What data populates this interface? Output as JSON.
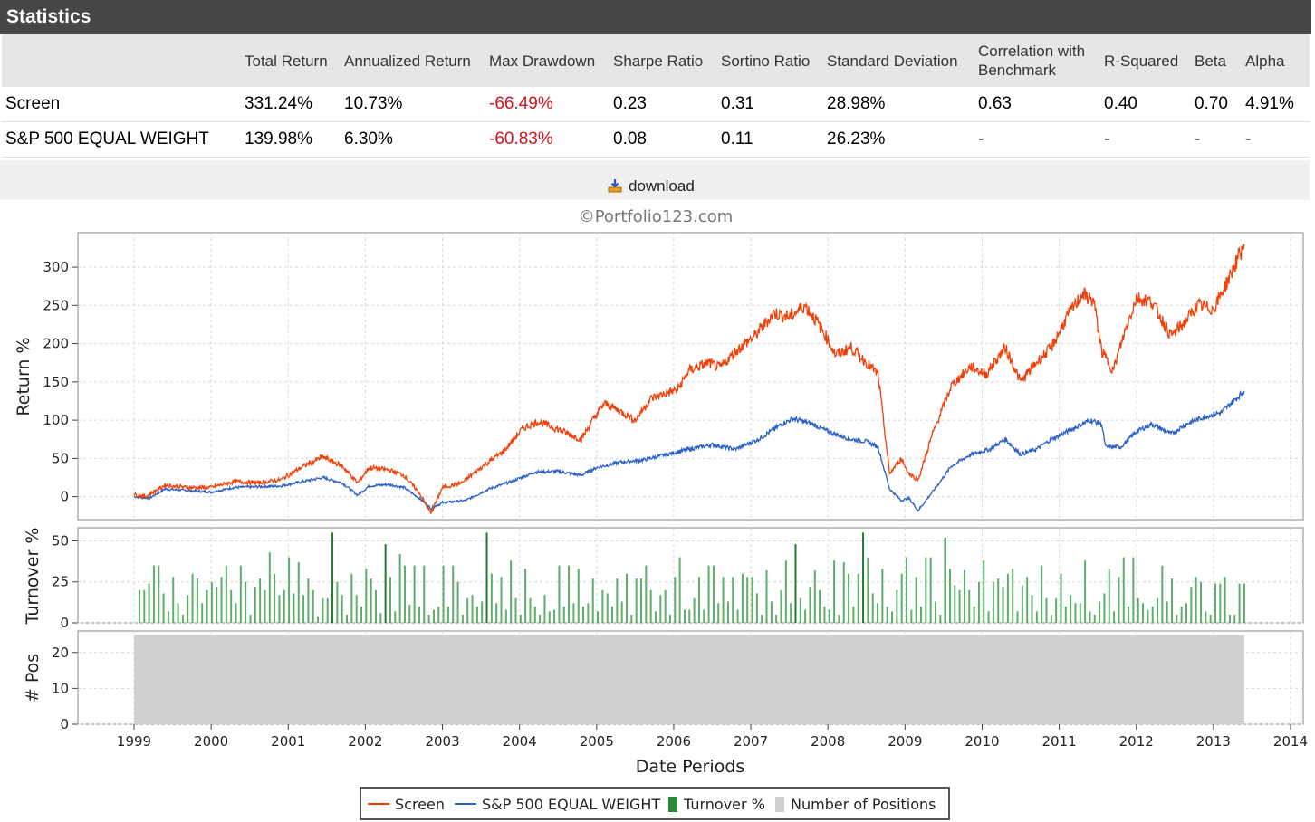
{
  "statistics": {
    "title": "Statistics",
    "columns": [
      "",
      "Total Return",
      "Annualized Return",
      "Max Drawdown",
      "Sharpe Ratio",
      "Sortino Ratio",
      "Standard Deviation",
      "Correlation with Benchmark",
      "R-Squared",
      "Beta",
      "Alpha"
    ],
    "rows": [
      {
        "name": "Screen",
        "total_return": "331.24%",
        "annualized_return": "10.73%",
        "max_drawdown": "-66.49%",
        "sharpe": "0.23",
        "sortino": "0.31",
        "std_dev": "28.98%",
        "correlation": "0.63",
        "r_squared": "0.40",
        "beta": "0.70",
        "alpha": "4.91%"
      },
      {
        "name": "S&P 500 EQUAL WEIGHT",
        "total_return": "139.98%",
        "annualized_return": "6.30%",
        "max_drawdown": "-60.83%",
        "sharpe": "0.08",
        "sortino": "0.11",
        "std_dev": "26.23%",
        "correlation": "-",
        "r_squared": "-",
        "beta": "-",
        "alpha": "-"
      }
    ],
    "negative_color": "#d2141e"
  },
  "download": {
    "label": "download",
    "icon": "download-icon"
  },
  "chart_data": {
    "type": "line",
    "copyright": "©Portfolio123.com",
    "xlabel": "Date Periods",
    "x_ticks": [
      "1999",
      "2000",
      "2001",
      "2002",
      "2003",
      "2004",
      "2005",
      "2006",
      "2007",
      "2008",
      "2009",
      "2010",
      "2011",
      "2012",
      "2013",
      "2014"
    ],
    "xlim": [
      1999.0,
      2014.0
    ],
    "grid": true,
    "panels": [
      {
        "ylabel": "Return %",
        "ylim": [
          -30,
          345
        ],
        "y_ticks": [
          0,
          50,
          100,
          150,
          200,
          250,
          300
        ],
        "series": [
          {
            "name": "Screen",
            "color": "#f0400a",
            "points": [
              [
                1999.0,
                3
              ],
              [
                1999.15,
                0
              ],
              [
                1999.4,
                15
              ],
              [
                1999.7,
                12
              ],
              [
                2000.0,
                12
              ],
              [
                2000.3,
                20
              ],
              [
                2000.6,
                18
              ],
              [
                2000.9,
                22
              ],
              [
                2001.2,
                40
              ],
              [
                2001.45,
                52
              ],
              [
                2001.7,
                40
              ],
              [
                2001.9,
                18
              ],
              [
                2002.05,
                38
              ],
              [
                2002.3,
                35
              ],
              [
                2002.5,
                28
              ],
              [
                2002.7,
                5
              ],
              [
                2002.85,
                -22
              ],
              [
                2003.0,
                12
              ],
              [
                2003.25,
                18
              ],
              [
                2003.5,
                38
              ],
              [
                2003.8,
                60
              ],
              [
                2004.05,
                90
              ],
              [
                2004.25,
                98
              ],
              [
                2004.5,
                88
              ],
              [
                2004.8,
                75
              ],
              [
                2004.95,
                100
              ],
              [
                2005.1,
                122
              ],
              [
                2005.3,
                112
              ],
              [
                2005.5,
                100
              ],
              [
                2005.7,
                128
              ],
              [
                2005.9,
                135
              ],
              [
                2006.05,
                140
              ],
              [
                2006.2,
                165
              ],
              [
                2006.45,
                175
              ],
              [
                2006.6,
                168
              ],
              [
                2006.8,
                190
              ],
              [
                2007.05,
                210
              ],
              [
                2007.3,
                240
              ],
              [
                2007.5,
                235
              ],
              [
                2007.7,
                250
              ],
              [
                2007.85,
                230
              ],
              [
                2008.0,
                205
              ],
              [
                2008.1,
                185
              ],
              [
                2008.3,
                195
              ],
              [
                2008.5,
                175
              ],
              [
                2008.65,
                160
              ],
              [
                2008.8,
                30
              ],
              [
                2008.95,
                50
              ],
              [
                2009.05,
                30
              ],
              [
                2009.17,
                22
              ],
              [
                2009.35,
                80
              ],
              [
                2009.6,
                145
              ],
              [
                2009.85,
                170
              ],
              [
                2010.05,
                160
              ],
              [
                2010.3,
                195
              ],
              [
                2010.5,
                150
              ],
              [
                2010.7,
                175
              ],
              [
                2010.9,
                195
              ],
              [
                2011.1,
                235
              ],
              [
                2011.3,
                265
              ],
              [
                2011.45,
                255
              ],
              [
                2011.55,
                190
              ],
              [
                2011.7,
                165
              ],
              [
                2011.85,
                215
              ],
              [
                2012.0,
                260
              ],
              [
                2012.2,
                255
              ],
              [
                2012.45,
                210
              ],
              [
                2012.6,
                225
              ],
              [
                2012.8,
                250
              ],
              [
                2013.0,
                245
              ],
              [
                2013.2,
                285
              ],
              [
                2013.4,
                330
              ]
            ]
          },
          {
            "name": "S&P 500 EQUAL WEIGHT",
            "color": "#2a5fc8",
            "points": [
              [
                1999.0,
                0
              ],
              [
                1999.2,
                -2
              ],
              [
                1999.4,
                10
              ],
              [
                1999.7,
                8
              ],
              [
                2000.0,
                6
              ],
              [
                2000.3,
                12
              ],
              [
                2000.6,
                13
              ],
              [
                2000.9,
                14
              ],
              [
                2001.2,
                20
              ],
              [
                2001.45,
                25
              ],
              [
                2001.7,
                18
              ],
              [
                2001.9,
                2
              ],
              [
                2002.05,
                14
              ],
              [
                2002.3,
                16
              ],
              [
                2002.5,
                12
              ],
              [
                2002.7,
                -2
              ],
              [
                2002.85,
                -15
              ],
              [
                2003.0,
                -8
              ],
              [
                2003.3,
                -5
              ],
              [
                2003.6,
                10
              ],
              [
                2003.9,
                20
              ],
              [
                2004.2,
                32
              ],
              [
                2004.5,
                33
              ],
              [
                2004.8,
                28
              ],
              [
                2005.0,
                38
              ],
              [
                2005.3,
                45
              ],
              [
                2005.6,
                48
              ],
              [
                2005.9,
                55
              ],
              [
                2006.2,
                62
              ],
              [
                2006.5,
                68
              ],
              [
                2006.8,
                62
              ],
              [
                2007.1,
                75
              ],
              [
                2007.4,
                95
              ],
              [
                2007.55,
                102
              ],
              [
                2007.8,
                95
              ],
              [
                2008.0,
                85
              ],
              [
                2008.3,
                75
              ],
              [
                2008.5,
                72
              ],
              [
                2008.65,
                65
              ],
              [
                2008.8,
                10
              ],
              [
                2008.95,
                -5
              ],
              [
                2009.05,
                -2
              ],
              [
                2009.17,
                -18
              ],
              [
                2009.4,
                12
              ],
              [
                2009.6,
                40
              ],
              [
                2009.85,
                55
              ],
              [
                2010.1,
                62
              ],
              [
                2010.3,
                75
              ],
              [
                2010.5,
                55
              ],
              [
                2010.7,
                62
              ],
              [
                2010.9,
                75
              ],
              [
                2011.2,
                90
              ],
              [
                2011.4,
                100
              ],
              [
                2011.55,
                95
              ],
              [
                2011.6,
                65
              ],
              [
                2011.8,
                65
              ],
              [
                2012.0,
                85
              ],
              [
                2012.2,
                95
              ],
              [
                2012.45,
                82
              ],
              [
                2012.65,
                95
              ],
              [
                2012.9,
                105
              ],
              [
                2013.1,
                110
              ],
              [
                2013.4,
                138
              ]
            ]
          }
        ]
      },
      {
        "ylabel": "Turnover %",
        "ylim": [
          0,
          58
        ],
        "y_ticks": [
          0,
          25,
          50
        ],
        "series": [
          {
            "name": "Turnover %",
            "type": "bar",
            "color": "#2a8a3a",
            "values_by_month": [
              20,
              20,
              24,
              35,
              35,
              18,
              7,
              28,
              12,
              5,
              17,
              30,
              27,
              12,
              20,
              25,
              22,
              28,
              35,
              20,
              12,
              35,
              25,
              5,
              22,
              27,
              20,
              43,
              30,
              17,
              20,
              40,
              18,
              37,
              17,
              27,
              20,
              4,
              15,
              15,
              55,
              25,
              17,
              5,
              30,
              17,
              10,
              33,
              27,
              20,
              6,
              48,
              28,
              7,
              42,
              35,
              11,
              35,
              10,
              35,
              5,
              8,
              10,
              35,
              10,
              35,
              25,
              5,
              15,
              17,
              10,
              13,
              55,
              30,
              12,
              28,
              8,
              38,
              15,
              5,
              33,
              15,
              10,
              5,
              17,
              7,
              8,
              35,
              10,
              35,
              12,
              33,
              10,
              12,
              27,
              7,
              20,
              18,
              10,
              27,
              13,
              30,
              5,
              27,
              27,
              35,
              20,
              7,
              17,
              20,
              5,
              28,
              40,
              8,
              8,
              15,
              28,
              8,
              35,
              35,
              12,
              28,
              13,
              28,
              8,
              30,
              28,
              28,
              18,
              5,
              32,
              13,
              5,
              20,
              38,
              12,
              48,
              15,
              8,
              22,
              32,
              20,
              10,
              8,
              38,
              5,
              37,
              30,
              10,
              30,
              55,
              40,
              18,
              12,
              33,
              10,
              7,
              20,
              30,
              40,
              8,
              28,
              10,
              40,
              40,
              13,
              5,
              52,
              33,
              23,
              20,
              32,
              20,
              10,
              25,
              38,
              7,
              25,
              27,
              22,
              30,
              33,
              7,
              23,
              28,
              17,
              7,
              35,
              15,
              5,
              15,
              30,
              10,
              17,
              12,
              12,
              38,
              7,
              5,
              13,
              18,
              33,
              7,
              28,
              40,
              10,
              40,
              15,
              12,
              8,
              10,
              15,
              35,
              13,
              27,
              5,
              10,
              12,
              22,
              28,
              25,
              7,
              5,
              24,
              24,
              28,
              5,
              5,
              24,
              24
            ]
          }
        ]
      },
      {
        "ylabel": "# Pos",
        "ylim": [
          0,
          26
        ],
        "y_ticks": [
          0,
          10,
          20
        ],
        "series": [
          {
            "name": "Number of Positions",
            "type": "area",
            "color": "#d0d0d0",
            "value": 25,
            "x_range": [
              1999.0,
              2013.4
            ]
          }
        ]
      }
    ],
    "legend": {
      "placement": "bottom-center",
      "items": [
        "Screen",
        "S&P 500 EQUAL WEIGHT",
        "Turnover %",
        "Number of Positions"
      ]
    }
  }
}
